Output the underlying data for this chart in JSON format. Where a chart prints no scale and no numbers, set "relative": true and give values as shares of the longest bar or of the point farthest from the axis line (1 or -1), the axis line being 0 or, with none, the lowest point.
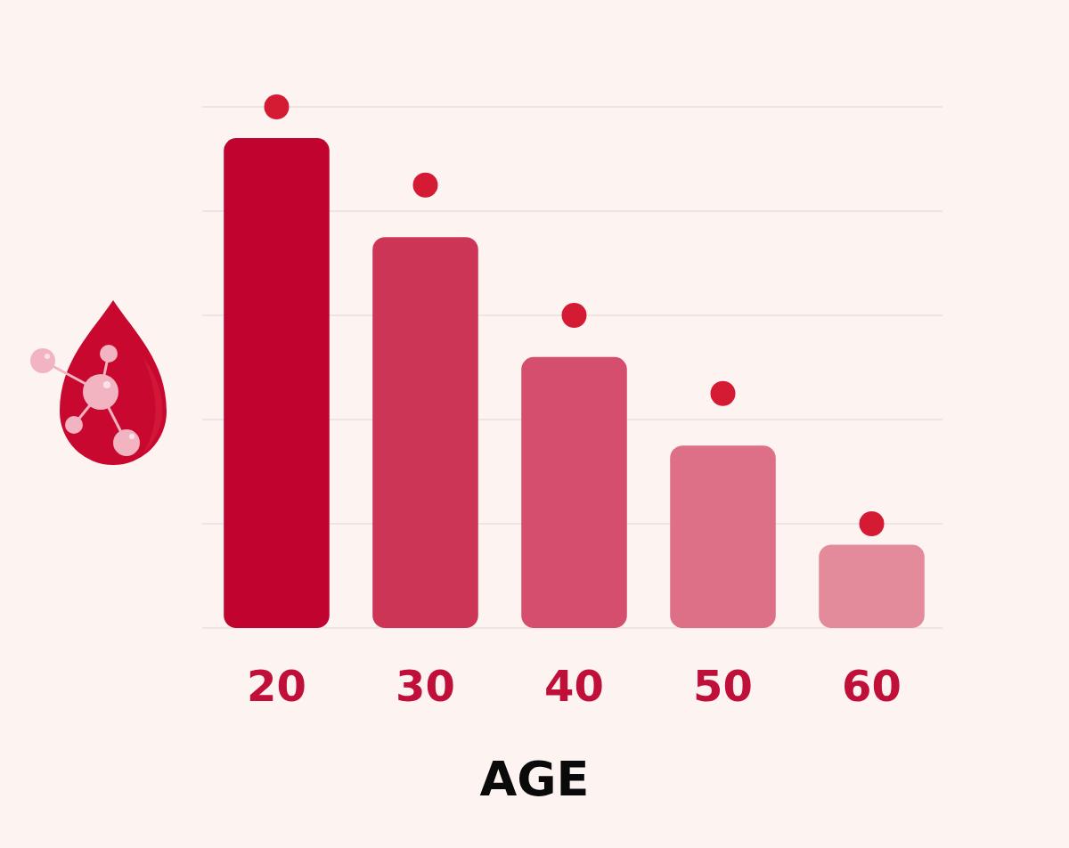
{
  "chart_data": {
    "type": "bar",
    "relative": true,
    "xlabel": "AGE",
    "categories": [
      "20",
      "30",
      "40",
      "50",
      "60"
    ],
    "grid": "y",
    "series": [
      {
        "colors": [
          "#c0032f",
          "#cd3556",
          "#d54e6d",
          "#dd6f87",
          "#e38a9b"
        ],
        "values": [
          0.94,
          0.75,
          0.52,
          0.35,
          0.16
        ]
      },
      {
        "type": "scatter",
        "x": [
          "20",
          "30",
          "40",
          "50",
          "60"
        ],
        "color": "#d51a34",
        "marker": "circle",
        "values": [
          1,
          0.85,
          0.6,
          0.45,
          0.2
        ]
      }
    ]
  }
}
